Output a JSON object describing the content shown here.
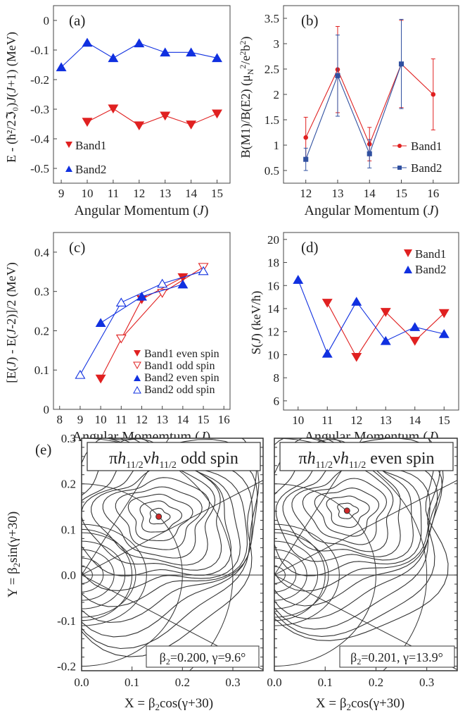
{
  "figure": {
    "panels": [
      {
        "id": "a",
        "label": "(a)",
        "xlabel": "Angular Momentum (J)",
        "ylabel": "E - (ħ²/2ℑ₀)J(J+1) (MeV)",
        "xticks": [
          "9",
          "10",
          "11",
          "12",
          "13",
          "14",
          "15"
        ],
        "yticks": [
          "0",
          "-0.1",
          "-0.2",
          "-0.3",
          "-0.4",
          "-0.5"
        ]
      },
      {
        "id": "b",
        "label": "(b)",
        "xlabel": "Angular Momentum (J)",
        "ylabel": "B(M1)/B(E2) (μN²/e²b²)",
        "xticks": [
          "12",
          "13",
          "14",
          "15",
          "16"
        ],
        "yticks": [
          "0.5",
          "1",
          "1.5",
          "2",
          "2.5",
          "3",
          "3.5"
        ]
      },
      {
        "id": "c",
        "label": "(c)",
        "xlabel": "Angular Momemtum (J)",
        "ylabel": "[E(J) - E(J-2)]/2 (MeV)",
        "xticks": [
          "8",
          "9",
          "10",
          "11",
          "12",
          "13",
          "14",
          "15",
          "16"
        ],
        "yticks": [
          "0",
          "0.1",
          "0.2",
          "0.3",
          "0.4"
        ]
      },
      {
        "id": "d",
        "label": "(d)",
        "xlabel": "Angular Momentum (J)",
        "ylabel": "S(J) (keV/ħ)",
        "xticks": [
          "10",
          "11",
          "12",
          "13",
          "14",
          "15"
        ],
        "yticks": [
          "6",
          "8",
          "10",
          "12",
          "14",
          "16",
          "18",
          "20"
        ]
      },
      {
        "id": "e",
        "label": "(e)",
        "ylabel": "Y = β2sin(γ+30)",
        "xlabel": "X = β2cos(γ+30)",
        "xticks": [
          "0.0",
          "0.1",
          "0.2",
          "0.3"
        ],
        "yticks": [
          "0.3",
          "0.2",
          "0.1",
          "0.0",
          "-0.1",
          "-0.2"
        ],
        "left_title": "πh11/2νh11/2 odd spin",
        "right_title": "πh11/2νh11/2 even spin",
        "left_note": "β2=0.200, γ=9.6°",
        "right_note": "β2=0.201, γ=13.9°"
      }
    ]
  },
  "chart_data": [
    {
      "panel": "a",
      "type": "line",
      "xlim": [
        8.7,
        15.5
      ],
      "ylim": [
        -0.55,
        0.05
      ],
      "series": [
        {
          "name": "Band1",
          "color": "#e02020",
          "marker": "triangle-down",
          "x": [
            10,
            11,
            12,
            13,
            14,
            15
          ],
          "values": [
            -0.343,
            -0.298,
            -0.355,
            -0.322,
            -0.352,
            -0.315
          ]
        },
        {
          "name": "Band2",
          "color": "#1030e0",
          "marker": "triangle-up",
          "x": [
            9,
            10,
            11,
            12,
            13,
            14,
            15
          ],
          "values": [
            -0.158,
            -0.075,
            -0.127,
            -0.077,
            -0.108,
            -0.108,
            -0.127
          ]
        }
      ]
    },
    {
      "panel": "b",
      "type": "line",
      "xlim": [
        11.3,
        16.8
      ],
      "ylim": [
        0.25,
        3.75
      ],
      "series": [
        {
          "name": "Band1",
          "color": "#e02020",
          "marker": "circle",
          "x": [
            12,
            13,
            14,
            15,
            16
          ],
          "values": [
            1.15,
            2.49,
            1.02,
            2.6,
            2.0
          ],
          "err": [
            0.4,
            0.85,
            0.33,
            0.86,
            0.7
          ]
        },
        {
          "name": "Band2",
          "color": "#3050a0",
          "marker": "square",
          "x": [
            12,
            13,
            14,
            15
          ],
          "values": [
            0.72,
            2.37,
            0.83,
            2.6
          ],
          "err": [
            0.22,
            0.8,
            0.28,
            0.88
          ]
        }
      ]
    },
    {
      "panel": "c",
      "type": "line",
      "xlim": [
        7.7,
        16.3
      ],
      "ylim": [
        0,
        0.45
      ],
      "series": [
        {
          "name": "Band1 even spin",
          "color": "#e02020",
          "marker": "triangle-down",
          "filled": true,
          "x": [
            10,
            12,
            14
          ],
          "values": [
            0.078,
            0.28,
            0.336
          ]
        },
        {
          "name": "Band1 odd spin",
          "color": "#e02020",
          "marker": "triangle-down",
          "filled": false,
          "x": [
            11,
            13,
            15
          ],
          "values": [
            0.18,
            0.296,
            0.362
          ]
        },
        {
          "name": "Band2 even spin",
          "color": "#1030e0",
          "marker": "triangle-up",
          "filled": true,
          "x": [
            10,
            12,
            14
          ],
          "values": [
            0.22,
            0.287,
            0.318
          ]
        },
        {
          "name": "Band2 odd spin",
          "color": "#1030e0",
          "marker": "triangle-up",
          "filled": false,
          "x": [
            9,
            11,
            13,
            15
          ],
          "values": [
            0.088,
            0.272,
            0.32,
            0.352
          ]
        }
      ]
    },
    {
      "panel": "d",
      "type": "line",
      "xlim": [
        9.5,
        15.5
      ],
      "ylim": [
        5.2,
        20.6
      ],
      "series": [
        {
          "name": "Band1",
          "color": "#e02020",
          "marker": "triangle-down",
          "x": [
            11,
            12,
            13,
            14,
            15
          ],
          "values": [
            14.5,
            9.8,
            13.7,
            11.2,
            13.6
          ]
        },
        {
          "name": "Band2",
          "color": "#1030e0",
          "marker": "triangle-up",
          "x": [
            10,
            11,
            12,
            13,
            14,
            15
          ],
          "values": [
            16.5,
            10.1,
            14.6,
            11.2,
            12.4,
            11.8
          ]
        }
      ]
    },
    {
      "panel": "e",
      "type": "contour",
      "xlim": [
        0,
        0.36
      ],
      "ylim": [
        -0.21,
        0.3
      ],
      "minima": [
        {
          "x": 0.153,
          "y": 0.128
        },
        {
          "x": 0.143,
          "y": 0.141
        }
      ]
    }
  ]
}
